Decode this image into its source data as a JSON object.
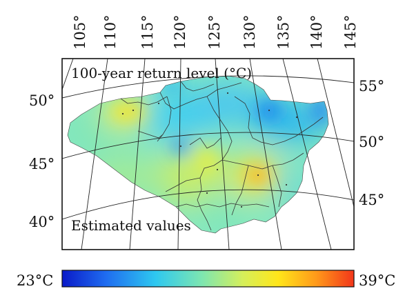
{
  "map": {
    "title": "100-year return level (°C)",
    "subtitle": "Estimated values",
    "top_lon_ticks": [
      "105°",
      "110°",
      "115°",
      "120°",
      "125°",
      "130°",
      "135°",
      "140°",
      "145°"
    ],
    "left_lat_ticks": [
      "50°",
      "45°",
      "40°"
    ],
    "right_lat_ticks": [
      "55°",
      "50°",
      "45°"
    ]
  },
  "colorbar": {
    "min_label": "23°C",
    "max_label": "39°C",
    "min_value": 23,
    "max_value": 39,
    "colormap": [
      "#0a1ac8",
      "#1f6cf0",
      "#2ec8f0",
      "#7ee6b0",
      "#d6ef5a",
      "#ffe61a",
      "#ff9a1a",
      "#f2361a"
    ]
  },
  "colors": {
    "frame": "#111111",
    "background": "#ffffff",
    "boundary_lines": "#333333"
  },
  "icons": [
    "map-frame",
    "colorbar"
  ]
}
